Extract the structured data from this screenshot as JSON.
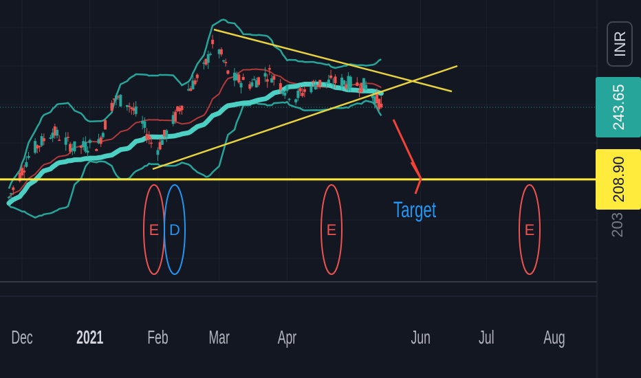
{
  "chart_data": {
    "type": "candlestick",
    "currency": "INR",
    "x_ticks": [
      {
        "label": "Dec",
        "date": "2020-12-01",
        "bold": false
      },
      {
        "label": "2021",
        "date": "2021-01-01",
        "bold": true
      },
      {
        "label": "Feb",
        "date": "2021-02-01",
        "bold": false
      },
      {
        "label": "Mar",
        "date": "2021-03-01",
        "bold": false
      },
      {
        "label": "Apr",
        "date": "2021-04-01",
        "bold": false
      },
      {
        "label": "Jun",
        "date": "2021-06-01",
        "bold": false
      },
      {
        "label": "Jul",
        "date": "2021-07-01",
        "bold": false
      },
      {
        "label": "Aug",
        "date": "2021-08-01",
        "bold": false
      }
    ],
    "price_labels": [
      {
        "value": "243.65",
        "price": 243.65,
        "bg": "#26a69a",
        "fg": "#ffffff"
      },
      {
        "value": "208.90",
        "price": 208.9,
        "bg": "#ffeb3b",
        "fg": "#131722"
      }
    ],
    "hidden_label": "203.00",
    "horizontal_line": {
      "price": 208.9,
      "color": "#ffeb3b"
    },
    "events": [
      {
        "letter": "E",
        "date": "2021-01-31",
        "color": "#ef5350"
      },
      {
        "letter": "D",
        "date": "2021-02-03",
        "color": "#2196f3"
      },
      {
        "letter": "E",
        "date": "2021-04-22",
        "color": "#ef5350"
      },
      {
        "letter": "E",
        "date": "2021-07-28",
        "color": "#ef5350"
      }
    ],
    "annotation": {
      "text": "Target",
      "color": "#2196f3",
      "arrow_color": "#f44336"
    },
    "colors": {
      "up": "#26a69a",
      "down": "#ef5350",
      "ma": "#4dd0c4",
      "bands": "#26a69a",
      "basis": "#b23a3a",
      "trendlines": "#e8d33f"
    }
  }
}
